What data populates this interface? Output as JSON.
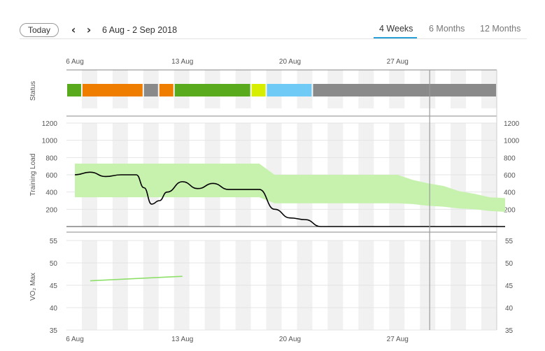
{
  "toolbar": {
    "today_label": "Today",
    "prev_icon": "chevron-left-icon",
    "next_icon": "chevron-right-icon",
    "date_range": "6 Aug - 2 Sep 2018",
    "tabs": [
      {
        "label": "4 Weeks",
        "active": true
      },
      {
        "label": "6 Months",
        "active": false
      },
      {
        "label": "12 Months",
        "active": false
      }
    ],
    "accent_color": "#2aa0d9"
  },
  "chart_data": [
    {
      "type": "timeline",
      "ylabel": "Status",
      "x_tick_labels": [
        "6 Aug",
        "13 Aug",
        "20 Aug",
        "27 Aug"
      ],
      "segments": [
        {
          "from": 0,
          "to": 1,
          "color": "#5aaa1e"
        },
        {
          "from": 1,
          "to": 5,
          "color": "#ef7d00"
        },
        {
          "from": 5,
          "to": 6,
          "color": "#8a8a8a"
        },
        {
          "from": 6,
          "to": 7,
          "color": "#ef7d00"
        },
        {
          "from": 7,
          "to": 12,
          "color": "#5aaa1e"
        },
        {
          "from": 12,
          "to": 13,
          "color": "#d8ee00"
        },
        {
          "from": 13,
          "to": 16,
          "color": "#6fcbf5"
        },
        {
          "from": 16,
          "to": 28,
          "color": "#8a8a8a"
        }
      ],
      "today_marker_day": 23.5
    },
    {
      "type": "area",
      "ylabel": "Training Load",
      "yticks": [
        200,
        400,
        600,
        800,
        1000,
        1200
      ],
      "ylim": [
        0,
        1200
      ],
      "band_color": "#c6f2ae",
      "line_color": "#000000",
      "optimal_range": {
        "x": [
          0,
          12,
          13,
          21,
          22,
          23,
          24,
          25,
          26,
          27,
          28
        ],
        "low": [
          340,
          340,
          270,
          270,
          260,
          240,
          230,
          210,
          200,
          180,
          170
        ],
        "high": [
          730,
          730,
          600,
          600,
          540,
          500,
          470,
          410,
          380,
          340,
          330
        ]
      },
      "load": {
        "x": [
          0,
          1,
          2,
          3,
          4,
          4.5,
          5,
          5.5,
          6,
          7,
          8,
          9,
          10,
          11,
          12,
          13,
          14,
          15,
          16,
          17,
          18,
          19,
          20,
          21,
          22,
          23,
          24,
          25,
          26,
          27,
          28
        ],
        "y": [
          600,
          630,
          580,
          600,
          600,
          450,
          260,
          300,
          400,
          520,
          440,
          500,
          430,
          430,
          430,
          200,
          100,
          80,
          0,
          0,
          0,
          0,
          0,
          0,
          0,
          0,
          0,
          0,
          0,
          0,
          0
        ]
      },
      "today_marker_day": 23.5
    },
    {
      "type": "line",
      "ylabel": "VO₂ Max",
      "yticks": [
        35,
        40,
        45,
        50,
        55
      ],
      "ylim": [
        35,
        55
      ],
      "x_tick_labels": [
        "6 Aug",
        "13 Aug",
        "20 Aug",
        "27 Aug"
      ],
      "line_color": "#8ee06a",
      "series": {
        "x": [
          1,
          7
        ],
        "y": [
          46,
          47
        ]
      },
      "today_marker_day": 23.5
    }
  ]
}
